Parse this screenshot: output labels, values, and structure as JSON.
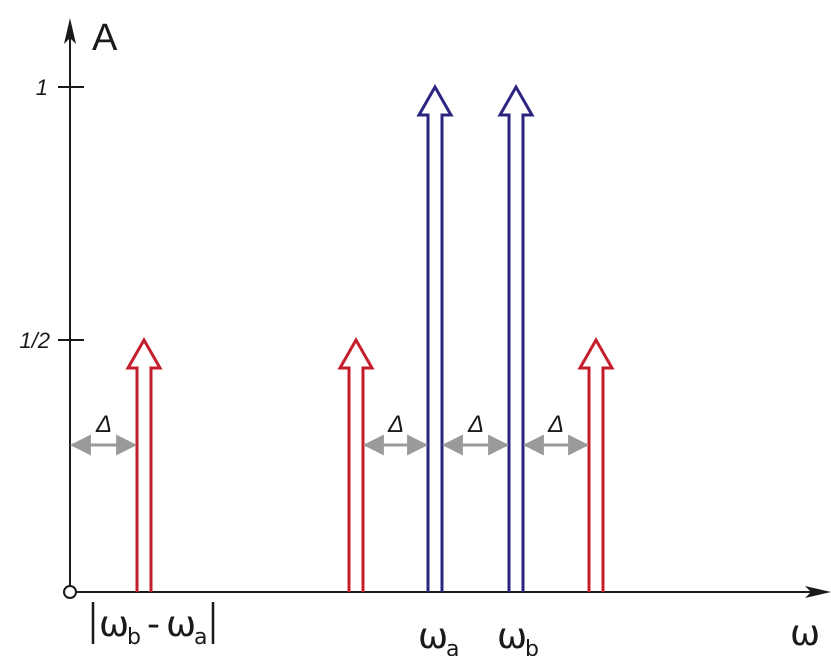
{
  "axes": {
    "y_title": "A",
    "x_title": "ω",
    "y_ticks": [
      "1",
      "1/2"
    ]
  },
  "x_labels": {
    "diff": {
      "omega": "ω",
      "sub_b": "b",
      "minus": "-",
      "omega2": "ω",
      "sub_a": "a"
    },
    "wa": {
      "omega": "ω",
      "sub": "a"
    },
    "wb": {
      "omega": "ω",
      "sub": "b"
    }
  },
  "delta_symbol": "Δ",
  "chart_data": {
    "type": "spectrum",
    "y_ticks": [
      0.5,
      1
    ],
    "ylim": [
      0,
      1
    ],
    "series": [
      {
        "color": "#c41e2a",
        "amplitude": 0.5
      },
      {
        "color": "#2b2582",
        "amplitude": 1
      }
    ],
    "lines": [
      {
        "label": "|ωb-ωa|",
        "amplitude": 0.5,
        "color": "#c41e2a"
      },
      {
        "label": "",
        "amplitude": 0.5,
        "color": "#c41e2a"
      },
      {
        "label": "ωa",
        "amplitude": 1,
        "color": "#2b2582"
      },
      {
        "label": "ωb",
        "amplitude": 1,
        "color": "#2b2582"
      },
      {
        "label": "",
        "amplitude": 0.5,
        "color": "#c41e2a"
      }
    ],
    "spacing_label": "Δ",
    "colors": {
      "red": "#c41e2a",
      "blue": "#2b2582",
      "axis": "#1a1a1a",
      "delta_arrow": "#9a9a9a"
    }
  }
}
